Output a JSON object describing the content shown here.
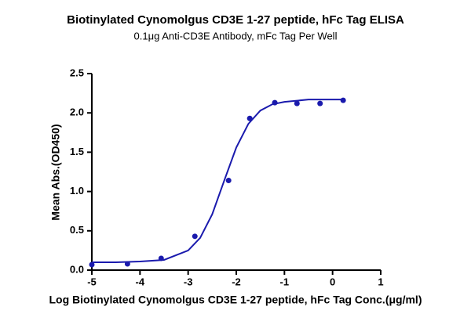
{
  "chart_data": {
    "type": "scatter",
    "title": "Biotinylated Cynomolgus CD3E 1-27 peptide, hFc Tag ELISA",
    "subtitle": "0.1μg Anti-CD3E Antibody, mFc Tag Per Well",
    "x_label": "Log Biotinylated Cynomolgus CD3E 1-27 peptide, hFc Tag Conc.(μg/ml)",
    "y_label": "Mean Abs.(OD450)",
    "color": "#1a1aad",
    "x": [
      -5,
      -4.26,
      -3.56,
      -2.86,
      -2.16,
      -1.72,
      -1.2,
      -0.74,
      -0.26,
      0.22
    ],
    "values": [
      0.07,
      0.08,
      0.15,
      0.43,
      1.14,
      1.93,
      2.13,
      2.12,
      2.12,
      2.16
    ],
    "curve": {
      "x": [
        -5,
        -4.5,
        -4,
        -3.5,
        -3,
        -2.75,
        -2.5,
        -2.25,
        -2,
        -1.75,
        -1.5,
        -1.25,
        -1,
        -0.5,
        0,
        0.22
      ],
      "values": [
        0.1,
        0.1,
        0.11,
        0.13,
        0.25,
        0.41,
        0.71,
        1.14,
        1.56,
        1.86,
        2.03,
        2.11,
        2.14,
        2.17,
        2.17,
        2.17
      ]
    },
    "xlim": [
      -5,
      1
    ],
    "xticks": [
      -5,
      -4,
      -3,
      -2,
      -1,
      0,
      1
    ],
    "ylim": [
      0,
      2.5
    ],
    "yticks": [
      {
        "value": 0,
        "label": "0.0"
      },
      0.5,
      {
        "value": 1,
        "label": "1.0"
      },
      1.5,
      {
        "value": 2,
        "label": "2.0"
      },
      2.5
    ],
    "grid": false
  }
}
